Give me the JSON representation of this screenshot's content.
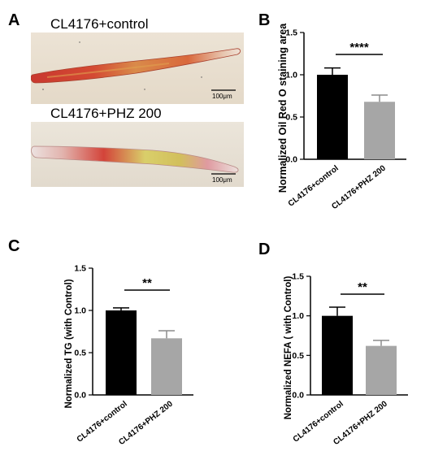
{
  "panel_a": {
    "letter": "A",
    "top_label": "CL4176+control",
    "bottom_label": "CL4176+PHZ 200",
    "top_scale": "100μm",
    "bottom_scale": "100μm"
  },
  "chart_data": [
    {
      "panel": "B",
      "type": "bar",
      "categories": [
        "CL4176+control",
        "CL4176+PHZ 200"
      ],
      "values": [
        1.0,
        0.68
      ],
      "errors": [
        0.08,
        0.08
      ],
      "colors": [
        "#000000",
        "#a6a6a6"
      ],
      "ylabel": "Normalized Oil Red O staining area",
      "ylim": [
        0,
        1.5
      ],
      "yticks": [
        "0.0",
        "0.5",
        "1.0",
        "1.5"
      ],
      "significance": "****",
      "grid": false
    },
    {
      "panel": "C",
      "type": "bar",
      "categories": [
        "CL4176+control",
        "CL4176+PHZ 200"
      ],
      "values": [
        1.0,
        0.67
      ],
      "errors": [
        0.03,
        0.09
      ],
      "colors": [
        "#000000",
        "#a6a6a6"
      ],
      "ylabel": "Normalized TG (with Control)",
      "ylim": [
        0,
        1.5
      ],
      "yticks": [
        "0.0",
        "0.5",
        "1.0",
        "1.5"
      ],
      "significance": "**",
      "grid": false
    },
    {
      "panel": "D",
      "type": "bar",
      "categories": [
        "CL4176+control",
        "CL4176+PHZ 200"
      ],
      "values": [
        1.0,
        0.62
      ],
      "errors": [
        0.11,
        0.07
      ],
      "colors": [
        "#000000",
        "#a6a6a6"
      ],
      "ylabel": "Normalized NEFA ( with Control)",
      "ylim": [
        0,
        1.5
      ],
      "yticks": [
        "0.0",
        "0.5",
        "1.0",
        "1.5"
      ],
      "significance": "**",
      "grid": false
    }
  ]
}
